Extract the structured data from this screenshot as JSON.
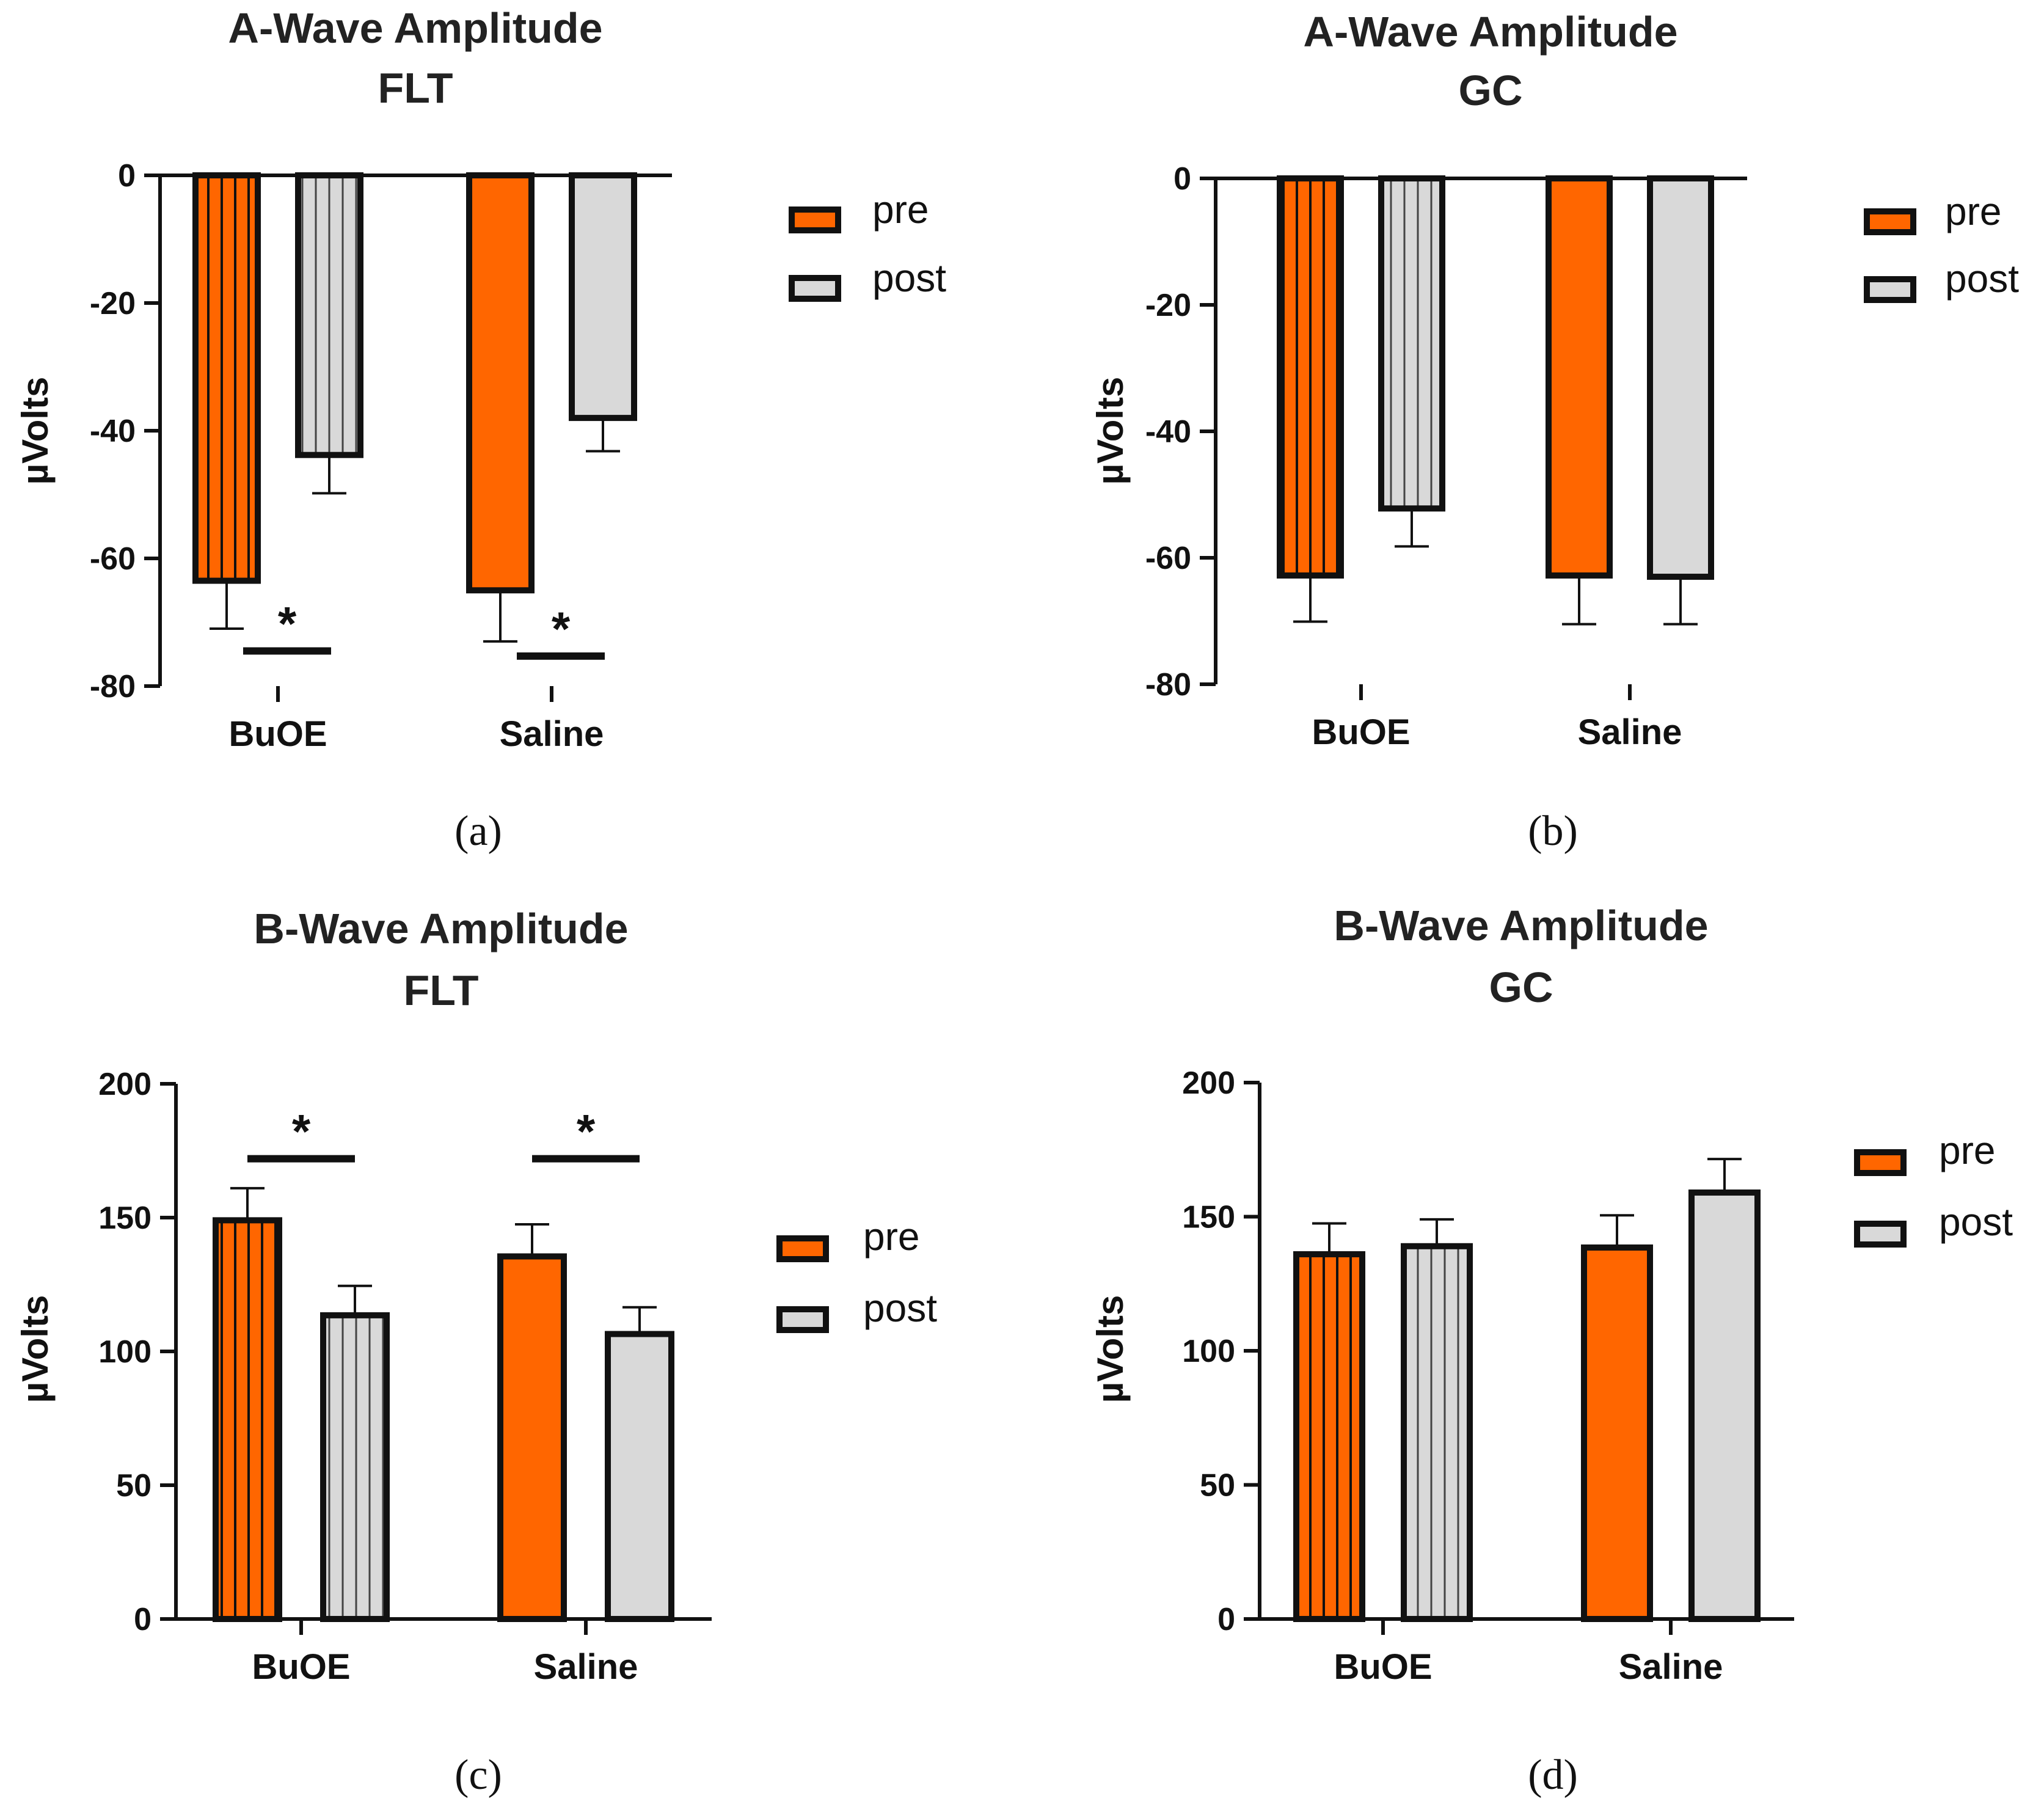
{
  "colors": {
    "pre": "#ff6600",
    "post": "#d9d9d9",
    "axis": "#111111",
    "stroke": "#111111"
  },
  "chart_data": [
    {
      "type": "bar",
      "panel_label": "(a)",
      "title": [
        "A-Wave Amplitude",
        "FLT"
      ],
      "ylabel": "µVolts",
      "ylim": [
        -80,
        0
      ],
      "yticks": [
        0,
        -20,
        -40,
        -60,
        -80
      ],
      "categories": [
        "BuOE",
        "Saline"
      ],
      "series": [
        {
          "name": "pre",
          "values": [
            -63.5,
            -65
          ],
          "errors": [
            7.5,
            8
          ],
          "hatched": [
            true,
            false
          ]
        },
        {
          "name": "post",
          "values": [
            -43.8,
            -38
          ],
          "errors": [
            6,
            5.2
          ],
          "hatched": [
            true,
            false
          ]
        }
      ],
      "significance": [
        {
          "category": "BuOE",
          "y": -74.5,
          "label": "*"
        },
        {
          "category": "Saline",
          "y": -75.3,
          "label": "*"
        }
      ],
      "legend": [
        "pre",
        "post"
      ]
    },
    {
      "type": "bar",
      "panel_label": "(b)",
      "title": [
        "A-Wave Amplitude",
        "GC"
      ],
      "ylabel": "µVolts",
      "ylim": [
        -80,
        0
      ],
      "yticks": [
        0,
        -20,
        -40,
        -60,
        -80
      ],
      "categories": [
        "BuOE",
        "Saline"
      ],
      "series": [
        {
          "name": "pre",
          "values": [
            -62.8,
            -62.8
          ],
          "errors": [
            7.3,
            7.7
          ],
          "hatched": [
            true,
            false
          ]
        },
        {
          "name": "post",
          "values": [
            -52.2,
            -63
          ],
          "errors": [
            6,
            7.5
          ],
          "hatched": [
            true,
            false
          ]
        }
      ],
      "significance": [],
      "legend": [
        "pre",
        "post"
      ]
    },
    {
      "type": "bar",
      "panel_label": "(c)",
      "title": [
        "B-Wave Amplitude",
        "FLT"
      ],
      "ylabel": "µVolts",
      "ylim": [
        0,
        200
      ],
      "yticks": [
        0,
        50,
        100,
        150,
        200
      ],
      "categories": [
        "BuOE",
        "Saline"
      ],
      "series": [
        {
          "name": "pre",
          "values": [
            149,
            135.5
          ],
          "errors": [
            12,
            12
          ],
          "hatched": [
            true,
            false
          ]
        },
        {
          "name": "post",
          "values": [
            113.5,
            106.5
          ],
          "errors": [
            11,
            10
          ],
          "hatched": [
            true,
            false
          ]
        }
      ],
      "significance": [
        {
          "category": "BuOE",
          "y": 172,
          "label": "*"
        },
        {
          "category": "Saline",
          "y": 172,
          "label": "*"
        }
      ],
      "legend": [
        "pre",
        "post"
      ]
    },
    {
      "type": "bar",
      "panel_label": "(d)",
      "title": [
        "B-Wave Amplitude",
        "GC"
      ],
      "ylabel": "µVolts",
      "ylim": [
        0,
        200
      ],
      "yticks": [
        0,
        50,
        100,
        150,
        200
      ],
      "categories": [
        "BuOE",
        "Saline"
      ],
      "series": [
        {
          "name": "pre",
          "values": [
            136,
            138.5
          ],
          "errors": [
            11.5,
            12
          ],
          "hatched": [
            true,
            false
          ]
        },
        {
          "name": "post",
          "values": [
            139,
            159
          ],
          "errors": [
            10,
            12.5
          ],
          "hatched": [
            true,
            false
          ]
        }
      ],
      "significance": [],
      "legend": [
        "pre",
        "post"
      ]
    }
  ]
}
